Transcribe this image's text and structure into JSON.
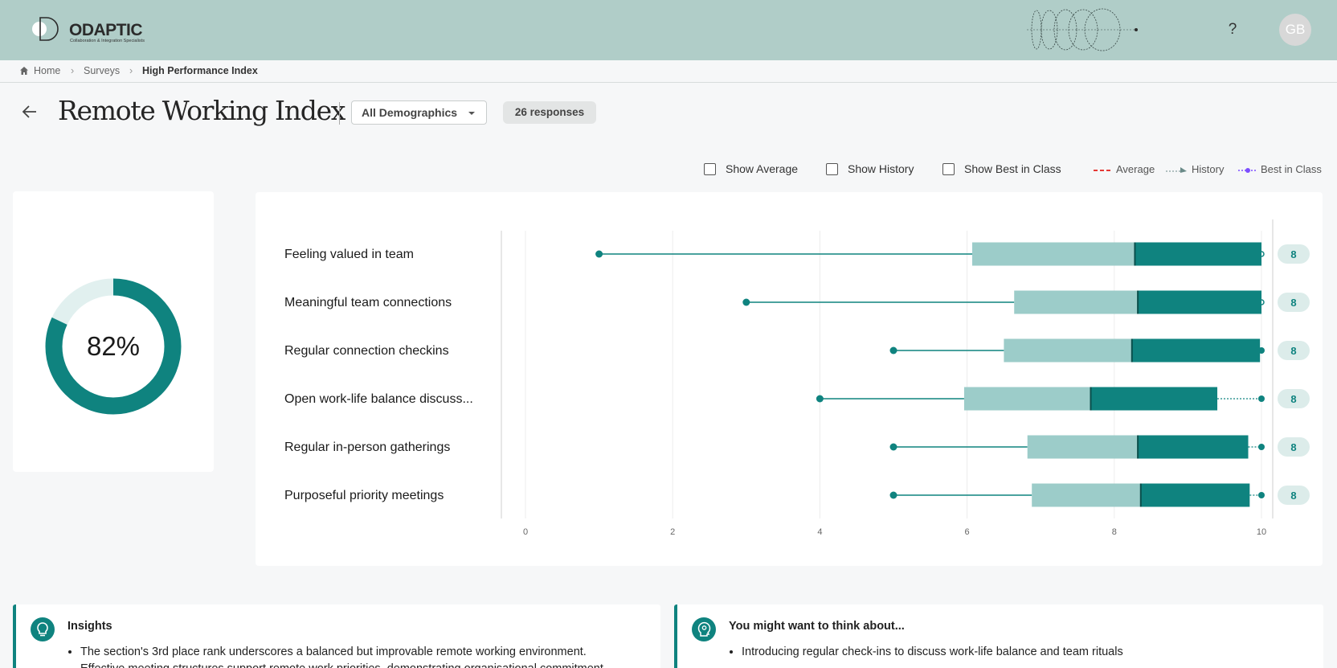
{
  "header": {
    "logo_text": "ODAPTIC",
    "logo_tagline": "Collaboration & Integration Specialists",
    "help_label": "?",
    "avatar_initials": "GB"
  },
  "breadcrumb": {
    "home": "Home",
    "surveys": "Surveys",
    "current": "High Performance Index"
  },
  "page": {
    "title": "Remote Working Index",
    "demographics": "All Demographics",
    "responses": "26 responses"
  },
  "toggles": {
    "show_average": "Show Average",
    "show_history": "Show History",
    "show_best": "Show Best in Class"
  },
  "legend": {
    "average": "Average",
    "history": "History",
    "best": "Best in Class"
  },
  "score": {
    "label": "82%",
    "fraction": 0.82
  },
  "colors": {
    "primary": "#0f837f",
    "light": "#9cccc9",
    "ring_track": "#e1f0ef",
    "header": "#b0cdc8",
    "average": "#e53935",
    "best": "#7c4dff"
  },
  "chart_data": {
    "type": "bar",
    "xlim": [
      0,
      10
    ],
    "xticks": [
      "0",
      "2",
      "4",
      "6",
      "8",
      "10"
    ],
    "rows": [
      {
        "label": "Feeling valued in team",
        "min": 1,
        "q1": 6.07,
        "median": 8.28,
        "q3": 10,
        "max": 10,
        "score": "8"
      },
      {
        "label": "Meaningful team connections",
        "min": 3,
        "q1": 6.64,
        "median": 8.32,
        "q3": 10,
        "max": 10,
        "score": "8"
      },
      {
        "label": "Regular connection checkins",
        "min": 5,
        "q1": 6.5,
        "median": 8.24,
        "q3": 9.98,
        "max": 10,
        "score": "8"
      },
      {
        "label": "Open work-life balance discuss...",
        "min": 4,
        "q1": 5.96,
        "median": 7.68,
        "q3": 9.4,
        "max": 10,
        "score": "8"
      },
      {
        "label": "Regular in-person gatherings",
        "min": 5,
        "q1": 6.82,
        "median": 8.32,
        "q3": 9.82,
        "max": 10,
        "score": "8"
      },
      {
        "label": "Purposeful priority meetings",
        "min": 5,
        "q1": 6.88,
        "median": 8.36,
        "q3": 9.84,
        "max": 10,
        "score": "8"
      }
    ]
  },
  "insights": {
    "title": "Insights",
    "items": [
      "The section's 3rd place rank underscores a balanced but improvable remote working environment.",
      "Effective meeting structures support remote work priorities, demonstrating organisational commitment."
    ]
  },
  "think": {
    "title": "You might want to think about...",
    "items": [
      "Introducing regular check-ins to discuss work-life balance and team rituals"
    ]
  }
}
